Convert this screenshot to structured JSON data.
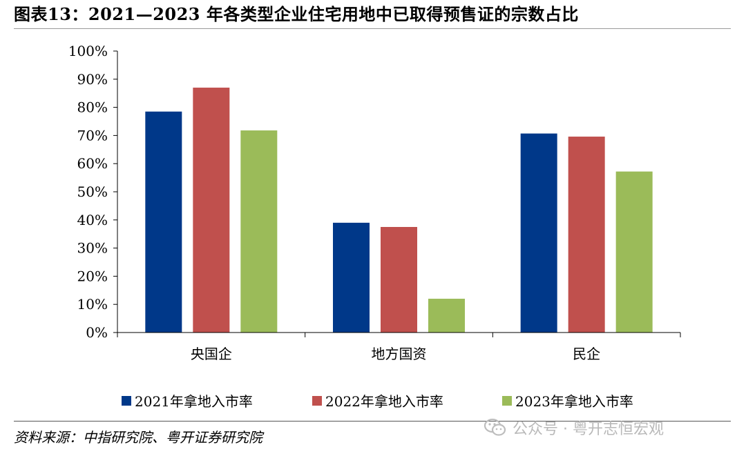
{
  "title": "图表13：2021—2023 年各类型企业住宅用地中已取得预售证的宗数占比",
  "source": "资料来源：中指研究院、粤开证券研究院",
  "watermark": {
    "icon": "wechat-icon",
    "text": "公众号 · 粤开志恒宏观"
  },
  "chart_data": {
    "type": "bar",
    "categories": [
      "央国企",
      "地方国资",
      "民企"
    ],
    "series": [
      {
        "name": "2021年拿地入市率",
        "color": "#003889",
        "values": [
          78.5,
          39,
          70.7
        ]
      },
      {
        "name": "2022年拿地入市率",
        "color": "#C0504D",
        "values": [
          87,
          37.5,
          69.6
        ]
      },
      {
        "name": "2023年拿地入市率",
        "color": "#9BBB59",
        "values": [
          71.8,
          12,
          57.2
        ]
      }
    ],
    "ylim": [
      0,
      100
    ],
    "yticks": [
      "0%",
      "10%",
      "20%",
      "30%",
      "40%",
      "50%",
      "60%",
      "70%",
      "80%",
      "90%",
      "100%"
    ],
    "xlabel": "",
    "ylabel": "",
    "grid": false,
    "legend_position": "bottom"
  }
}
